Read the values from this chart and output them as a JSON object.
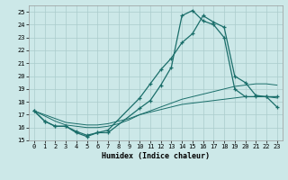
{
  "xlabel": "Humidex (Indice chaleur)",
  "background_color": "#cce8e8",
  "grid_color": "#aacccc",
  "line_color": "#1a6e6a",
  "xlim": [
    -0.5,
    23.5
  ],
  "ylim": [
    15,
    25.5
  ],
  "yticks": [
    15,
    16,
    17,
    18,
    19,
    20,
    21,
    22,
    23,
    24,
    25
  ],
  "xticks": [
    0,
    1,
    2,
    3,
    4,
    5,
    6,
    7,
    8,
    9,
    10,
    11,
    12,
    13,
    14,
    15,
    16,
    17,
    18,
    19,
    20,
    21,
    22,
    23
  ],
  "line1_x": [
    0,
    1,
    2,
    3,
    4,
    5,
    6,
    7,
    10,
    11,
    12,
    13,
    14,
    15,
    16,
    17,
    18,
    19,
    20,
    21,
    22,
    23
  ],
  "line1_y": [
    17.3,
    16.5,
    16.1,
    16.1,
    15.7,
    15.4,
    15.6,
    15.8,
    18.3,
    19.4,
    20.5,
    21.4,
    22.6,
    23.3,
    24.7,
    24.2,
    23.8,
    20.0,
    19.5,
    18.5,
    18.4,
    17.6
  ],
  "line2_x": [
    0,
    1,
    2,
    3,
    4,
    5,
    6,
    7,
    10,
    11,
    12,
    13,
    14,
    15,
    16,
    17,
    18,
    19,
    20,
    21,
    22,
    23
  ],
  "line2_y": [
    17.3,
    16.5,
    16.1,
    16.1,
    15.6,
    15.3,
    15.6,
    15.6,
    17.5,
    18.1,
    19.3,
    20.7,
    24.7,
    25.1,
    24.3,
    24.0,
    23.0,
    19.0,
    18.4,
    18.4,
    18.4,
    18.4
  ],
  "line3_x": [
    0,
    1,
    2,
    3,
    4,
    5,
    6,
    7,
    8,
    9,
    10,
    11,
    12,
    13,
    14,
    15,
    16,
    17,
    18,
    19,
    20,
    21,
    22,
    23
  ],
  "line3_y": [
    17.3,
    16.9,
    16.5,
    16.2,
    16.1,
    16.0,
    16.0,
    16.1,
    16.3,
    16.6,
    17.0,
    17.3,
    17.6,
    17.9,
    18.2,
    18.4,
    18.6,
    18.8,
    19.0,
    19.2,
    19.3,
    19.4,
    19.4,
    19.3
  ],
  "line4_x": [
    0,
    1,
    2,
    3,
    4,
    5,
    6,
    7,
    8,
    9,
    10,
    11,
    12,
    13,
    14,
    15,
    16,
    17,
    18,
    19,
    20,
    21,
    22,
    23
  ],
  "line4_y": [
    17.3,
    17.0,
    16.7,
    16.4,
    16.3,
    16.2,
    16.2,
    16.3,
    16.5,
    16.7,
    17.0,
    17.2,
    17.4,
    17.6,
    17.8,
    17.9,
    18.0,
    18.1,
    18.2,
    18.3,
    18.4,
    18.4,
    18.4,
    18.3
  ]
}
